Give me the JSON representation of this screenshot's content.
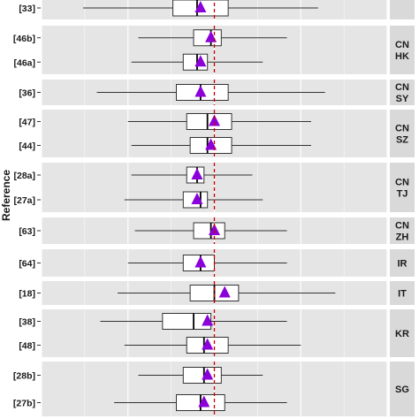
{
  "chart_data": {
    "type": "boxplot",
    "ylabel": "Reference",
    "xlim": [
      0,
      100
    ],
    "reference_line": 50,
    "grid": true,
    "colors": {
      "panel": "#e5e5e5",
      "strip": "#d9d9d9",
      "grid": "#ffffff",
      "box_fill": "#ffffff",
      "box_edge": "#333333",
      "whisker": "#333333",
      "median": "#000000",
      "mean_marker": "#8b00d9",
      "reference_line": "#cc0000"
    },
    "panels": [
      {
        "strip": "",
        "rows": [
          {
            "label": "[33]",
            "min": 12,
            "q1": 38,
            "median": 45,
            "q3": 54,
            "max": 80,
            "mean": 46
          }
        ]
      },
      {
        "strip": "CN\nHK",
        "rows": [
          {
            "label": "[46b]",
            "min": 28,
            "q1": 44,
            "median": 49,
            "q3": 52,
            "max": 71,
            "mean": 49
          },
          {
            "label": "[46a]",
            "min": 26,
            "q1": 41,
            "median": 45,
            "q3": 48,
            "max": 64,
            "mean": 46
          }
        ]
      },
      {
        "strip": "CN\nSY",
        "rows": [
          {
            "label": "[36]",
            "min": 16,
            "q1": 39,
            "median": 46,
            "q3": 54,
            "max": 82,
            "mean": 46
          }
        ]
      },
      {
        "strip": "CN\nSZ",
        "rows": [
          {
            "label": "[47]",
            "min": 25,
            "q1": 42,
            "median": 48,
            "q3": 55,
            "max": 78,
            "mean": 50
          },
          {
            "label": "[44]",
            "min": 26,
            "q1": 43,
            "median": 48,
            "q3": 55,
            "max": 78,
            "mean": 49
          }
        ]
      },
      {
        "strip": "CN\nTJ",
        "rows": [
          {
            "label": "[28a]",
            "min": 26,
            "q1": 42,
            "median": 45,
            "q3": 47,
            "max": 61,
            "mean": 45
          },
          {
            "label": "[27a]",
            "min": 24,
            "q1": 41,
            "median": 46,
            "q3": 48,
            "max": 64,
            "mean": 45
          }
        ]
      },
      {
        "strip": "CN\nZH",
        "rows": [
          {
            "label": "[63]",
            "min": 27,
            "q1": 44,
            "median": 49,
            "q3": 53,
            "max": 71,
            "mean": 50
          }
        ]
      },
      {
        "strip": "IR",
        "rows": [
          {
            "label": "[64]",
            "min": 25,
            "q1": 41,
            "median": 46,
            "q3": 50,
            "max": 71,
            "mean": 46
          }
        ]
      },
      {
        "strip": "IT",
        "rows": [
          {
            "label": "[18]",
            "min": 22,
            "q1": 43,
            "median": 50,
            "q3": 57,
            "max": 85,
            "mean": 53
          }
        ]
      },
      {
        "strip": "KR",
        "rows": [
          {
            "label": "[38]",
            "min": 17,
            "q1": 35,
            "median": 44,
            "q3": 49,
            "max": 71,
            "mean": 48
          },
          {
            "label": "[48]",
            "min": 24,
            "q1": 42,
            "median": 47,
            "q3": 54,
            "max": 75,
            "mean": 48
          }
        ]
      },
      {
        "strip": "SG",
        "rows": [
          {
            "label": "[28b]",
            "min": 28,
            "q1": 41,
            "median": 47,
            "q3": 52,
            "max": 64,
            "mean": 48
          },
          {
            "label": "[27b]",
            "min": 21,
            "q1": 39,
            "median": 46,
            "q3": 53,
            "max": 71,
            "mean": 47
          }
        ]
      }
    ]
  }
}
